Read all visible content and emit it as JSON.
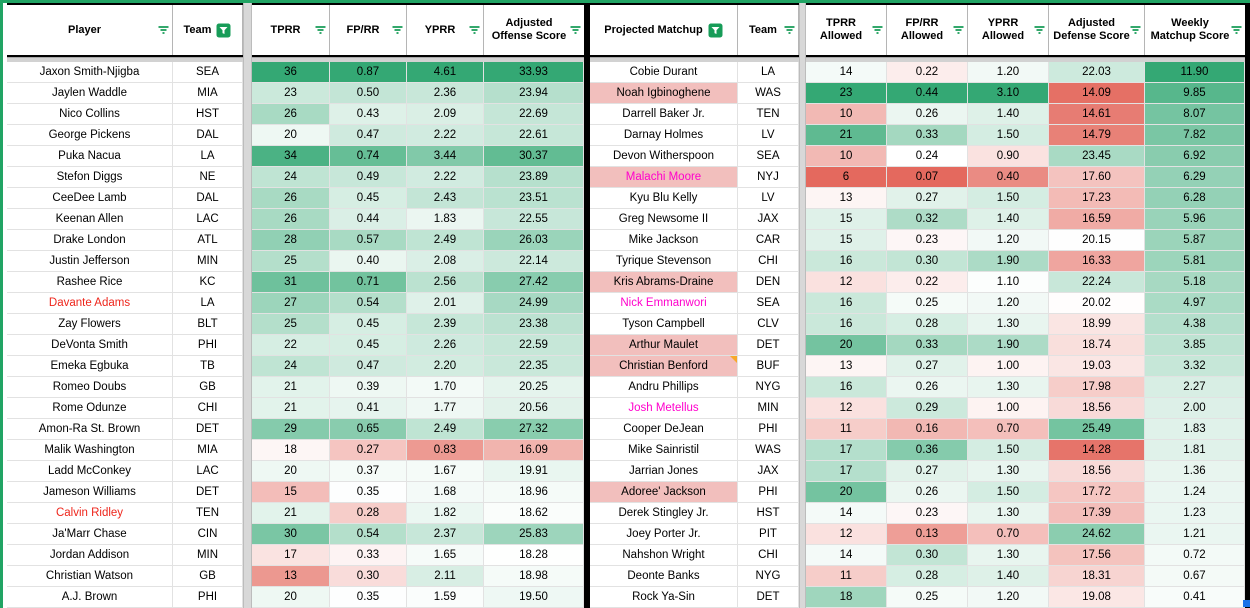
{
  "colors": {
    "scale_green": "#34a874",
    "scale_red": "#e4695e",
    "scale_white": "#ffffff",
    "highlight_pink_bg": "#f2bfbd",
    "red_text": "#ee261c",
    "magenta_text": "#ff00cc",
    "note_triangle": "#f7a82a",
    "filter_green": "#179c58",
    "top_line_green": "#21a464"
  },
  "left_table": {
    "headers": [
      {
        "label": "Player",
        "filter": "lines"
      },
      {
        "label": "Team",
        "filter": "active"
      },
      {
        "label": "TPRR",
        "filter": "lines"
      },
      {
        "label": "FP/RR",
        "filter": "lines"
      },
      {
        "label": "YPRR",
        "filter": "lines"
      },
      {
        "label": "Adjusted Offense Score",
        "filter": "lines"
      }
    ],
    "scales": {
      "tprr": [
        10.5,
        18.5,
        36
      ],
      "fprr": [
        0.15,
        0.345,
        0.87
      ],
      "yprr": [
        0.5,
        1.52,
        4.61
      ],
      "score": [
        14,
        18.2,
        33.93
      ]
    },
    "rows": [
      {
        "player": "Jaxon Smith-Njigba",
        "team": "SEA",
        "tprr": "36",
        "fprr": "0.87",
        "yprr": "4.61",
        "score": "33.93"
      },
      {
        "player": "Jaylen Waddle",
        "team": "MIA",
        "tprr": "23",
        "fprr": "0.50",
        "yprr": "2.36",
        "score": "23.94"
      },
      {
        "player": "Nico Collins",
        "team": "HST",
        "tprr": "26",
        "fprr": "0.43",
        "yprr": "2.09",
        "score": "22.69"
      },
      {
        "player": "George Pickens",
        "team": "DAL",
        "tprr": "20",
        "fprr": "0.47",
        "yprr": "2.22",
        "score": "22.61"
      },
      {
        "player": "Puka Nacua",
        "team": "LA",
        "tprr": "34",
        "fprr": "0.74",
        "yprr": "3.44",
        "score": "30.37"
      },
      {
        "player": "Stefon Diggs",
        "team": "NE",
        "tprr": "24",
        "fprr": "0.49",
        "yprr": "2.22",
        "score": "23.89"
      },
      {
        "player": "CeeDee Lamb",
        "team": "DAL",
        "tprr": "26",
        "fprr": "0.45",
        "yprr": "2.43",
        "score": "23.51"
      },
      {
        "player": "Keenan Allen",
        "team": "LAC",
        "tprr": "26",
        "fprr": "0.44",
        "yprr": "1.83",
        "score": "22.55"
      },
      {
        "player": "Drake London",
        "team": "ATL",
        "tprr": "28",
        "fprr": "0.57",
        "yprr": "2.49",
        "score": "26.03"
      },
      {
        "player": "Justin Jefferson",
        "team": "MIN",
        "tprr": "25",
        "fprr": "0.40",
        "yprr": "2.08",
        "score": "22.14"
      },
      {
        "player": "Rashee Rice",
        "team": "KC",
        "tprr": "31",
        "fprr": "0.71",
        "yprr": "2.56",
        "score": "27.42"
      },
      {
        "player": "Davante Adams",
        "team": "LA",
        "tprr": "27",
        "fprr": "0.54",
        "yprr": "2.01",
        "score": "24.99",
        "player_color": "red"
      },
      {
        "player": "Zay Flowers",
        "team": "BLT",
        "tprr": "25",
        "fprr": "0.45",
        "yprr": "2.39",
        "score": "23.38"
      },
      {
        "player": "DeVonta Smith",
        "team": "PHI",
        "tprr": "22",
        "fprr": "0.45",
        "yprr": "2.26",
        "score": "22.59"
      },
      {
        "player": "Emeka Egbuka",
        "team": "TB",
        "tprr": "24",
        "fprr": "0.47",
        "yprr": "2.20",
        "score": "22.35"
      },
      {
        "player": "Romeo Doubs",
        "team": "GB",
        "tprr": "21",
        "fprr": "0.39",
        "yprr": "1.70",
        "score": "20.25"
      },
      {
        "player": "Rome Odunze",
        "team": "CHI",
        "tprr": "21",
        "fprr": "0.41",
        "yprr": "1.77",
        "score": "20.56"
      },
      {
        "player": "Amon-Ra St. Brown",
        "team": "DET",
        "tprr": "29",
        "fprr": "0.65",
        "yprr": "2.49",
        "score": "27.32"
      },
      {
        "player": "Malik Washington",
        "team": "MIA",
        "tprr": "18",
        "fprr": "0.27",
        "yprr": "0.83",
        "score": "16.09"
      },
      {
        "player": "Ladd McConkey",
        "team": "LAC",
        "tprr": "20",
        "fprr": "0.37",
        "yprr": "1.67",
        "score": "19.91"
      },
      {
        "player": "Jameson Williams",
        "team": "DET",
        "tprr": "15",
        "fprr": "0.35",
        "yprr": "1.68",
        "score": "18.96"
      },
      {
        "player": "Calvin Ridley",
        "team": "TEN",
        "tprr": "21",
        "fprr": "0.28",
        "yprr": "1.82",
        "score": "18.62",
        "player_color": "red"
      },
      {
        "player": "Ja'Marr Chase",
        "team": "CIN",
        "tprr": "30",
        "fprr": "0.54",
        "yprr": "2.37",
        "score": "25.83"
      },
      {
        "player": "Jordan Addison",
        "team": "MIN",
        "tprr": "17",
        "fprr": "0.33",
        "yprr": "1.65",
        "score": "18.28"
      },
      {
        "player": "Christian Watson",
        "team": "GB",
        "tprr": "13",
        "fprr": "0.30",
        "yprr": "2.11",
        "score": "18.98"
      },
      {
        "player": "A.J. Brown",
        "team": "PHI",
        "tprr": "20",
        "fprr": "0.35",
        "yprr": "1.59",
        "score": "19.50"
      }
    ]
  },
  "right_table": {
    "headers": [
      {
        "label": "Projected Matchup",
        "filter": "active"
      },
      {
        "label": "Team",
        "filter": "lines"
      },
      {
        "label": "TPRR Allowed",
        "filter": "lines"
      },
      {
        "label": "FP/RR Allowed",
        "filter": "lines"
      },
      {
        "label": "YPRR Allowed",
        "filter": "lines"
      },
      {
        "label": "Adjusted Defense Score",
        "filter": "lines"
      },
      {
        "label": "Weekly Matchup Score",
        "filter": "lines"
      }
    ],
    "scales": {
      "tprr": [
        6,
        13.5,
        23
      ],
      "fprr": [
        0.07,
        0.24,
        0.44
      ],
      "yprr": [
        0.2,
        1.07,
        3.1
      ],
      "score": [
        13.8,
        20.1,
        28
      ],
      "weekly": [
        -11.9,
        0,
        11.9
      ]
    },
    "rows": [
      {
        "player": "Cobie Durant",
        "team": "LA",
        "tprr": "14",
        "fprr": "0.22",
        "yprr": "1.20",
        "score": "22.03",
        "weekly": "11.90"
      },
      {
        "player": "Noah Igbinoghene",
        "team": "WAS",
        "tprr": "23",
        "fprr": "0.44",
        "yprr": "3.10",
        "score": "14.09",
        "weekly": "9.85",
        "player_bg": "pink"
      },
      {
        "player": "Darrell Baker Jr.",
        "team": "TEN",
        "tprr": "10",
        "fprr": "0.26",
        "yprr": "1.40",
        "score": "14.61",
        "weekly": "8.07"
      },
      {
        "player": "Darnay Holmes",
        "team": "LV",
        "tprr": "21",
        "fprr": "0.33",
        "yprr": "1.50",
        "score": "14.79",
        "weekly": "7.82"
      },
      {
        "player": "Devon Witherspoon",
        "team": "SEA",
        "tprr": "10",
        "fprr": "0.24",
        "yprr": "0.90",
        "score": "23.45",
        "weekly": "6.92"
      },
      {
        "player": "Malachi Moore",
        "team": "NYJ",
        "tprr": "6",
        "fprr": "0.07",
        "yprr": "0.40",
        "score": "17.60",
        "weekly": "6.29",
        "player_bg": "pink",
        "player_color": "magenta"
      },
      {
        "player": "Kyu Blu Kelly",
        "team": "LV",
        "tprr": "13",
        "fprr": "0.27",
        "yprr": "1.50",
        "score": "17.23",
        "weekly": "6.28"
      },
      {
        "player": "Greg Newsome II",
        "team": "JAX",
        "tprr": "15",
        "fprr": "0.32",
        "yprr": "1.40",
        "score": "16.59",
        "weekly": "5.96"
      },
      {
        "player": "Mike Jackson",
        "team": "CAR",
        "tprr": "15",
        "fprr": "0.23",
        "yprr": "1.20",
        "score": "20.15",
        "weekly": "5.87"
      },
      {
        "player": "Tyrique Stevenson",
        "team": "CHI",
        "tprr": "16",
        "fprr": "0.30",
        "yprr": "1.90",
        "score": "16.33",
        "weekly": "5.81"
      },
      {
        "player": "Kris Abrams-Draine",
        "team": "DEN",
        "tprr": "12",
        "fprr": "0.22",
        "yprr": "1.10",
        "score": "22.24",
        "weekly": "5.18",
        "player_bg": "pink"
      },
      {
        "player": "Nick Emmanwori",
        "team": "SEA",
        "tprr": "16",
        "fprr": "0.25",
        "yprr": "1.20",
        "score": "20.02",
        "weekly": "4.97",
        "player_color": "magenta"
      },
      {
        "player": "Tyson Campbell",
        "team": "CLV",
        "tprr": "16",
        "fprr": "0.28",
        "yprr": "1.30",
        "score": "18.99",
        "weekly": "4.38"
      },
      {
        "player": "Arthur Maulet",
        "team": "DET",
        "tprr": "20",
        "fprr": "0.33",
        "yprr": "1.90",
        "score": "18.74",
        "weekly": "3.85",
        "player_bg": "pink"
      },
      {
        "player": "Christian Benford",
        "team": "BUF",
        "tprr": "13",
        "fprr": "0.27",
        "yprr": "1.00",
        "score": "19.03",
        "weekly": "3.32",
        "player_bg": "pink",
        "note": true
      },
      {
        "player": "Andru Phillips",
        "team": "NYG",
        "tprr": "16",
        "fprr": "0.26",
        "yprr": "1.30",
        "score": "17.98",
        "weekly": "2.27"
      },
      {
        "player": "Josh Metellus",
        "team": "MIN",
        "tprr": "12",
        "fprr": "0.29",
        "yprr": "1.00",
        "score": "18.56",
        "weekly": "2.00",
        "player_color": "magenta"
      },
      {
        "player": "Cooper DeJean",
        "team": "PHI",
        "tprr": "11",
        "fprr": "0.16",
        "yprr": "0.70",
        "score": "25.49",
        "weekly": "1.83"
      },
      {
        "player": "Mike Sainristil",
        "team": "WAS",
        "tprr": "17",
        "fprr": "0.36",
        "yprr": "1.50",
        "score": "14.28",
        "weekly": "1.81"
      },
      {
        "player": "Jarrian Jones",
        "team": "JAX",
        "tprr": "17",
        "fprr": "0.27",
        "yprr": "1.30",
        "score": "18.56",
        "weekly": "1.36"
      },
      {
        "player": "Adoree' Jackson",
        "team": "PHI",
        "tprr": "20",
        "fprr": "0.26",
        "yprr": "1.50",
        "score": "17.72",
        "weekly": "1.24",
        "player_bg": "pink"
      },
      {
        "player": "Derek Stingley Jr.",
        "team": "HST",
        "tprr": "14",
        "fprr": "0.23",
        "yprr": "1.30",
        "score": "17.39",
        "weekly": "1.23"
      },
      {
        "player": "Joey Porter Jr.",
        "team": "PIT",
        "tprr": "12",
        "fprr": "0.13",
        "yprr": "0.70",
        "score": "24.62",
        "weekly": "1.21"
      },
      {
        "player": "Nahshon Wright",
        "team": "CHI",
        "tprr": "14",
        "fprr": "0.30",
        "yprr": "1.30",
        "score": "17.56",
        "weekly": "0.72"
      },
      {
        "player": "Deonte Banks",
        "team": "NYG",
        "tprr": "11",
        "fprr": "0.28",
        "yprr": "1.40",
        "score": "18.31",
        "weekly": "0.67"
      },
      {
        "player": "Rock Ya-Sin",
        "team": "DET",
        "tprr": "18",
        "fprr": "0.25",
        "yprr": "1.20",
        "score": "19.08",
        "weekly": "0.41"
      }
    ]
  }
}
